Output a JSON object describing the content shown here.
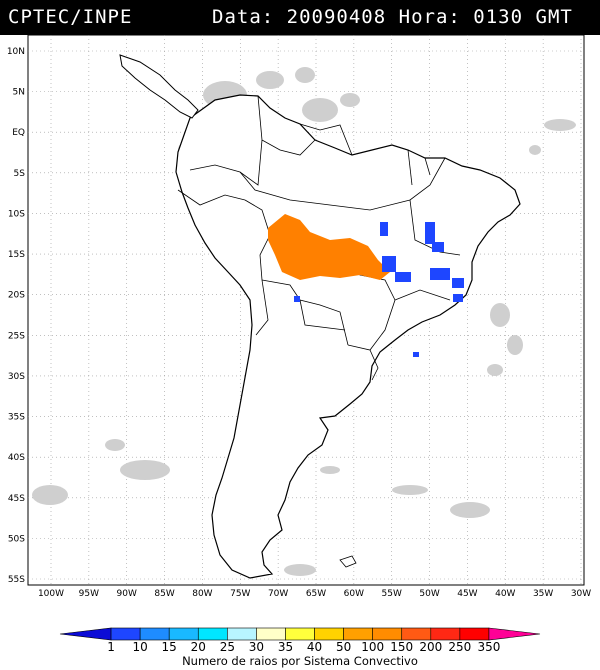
{
  "header": {
    "source": "CPTEC/INPE",
    "date_label": "Data:",
    "date_value": "20090408",
    "hour_label": "Hora:",
    "hour_value": "0130",
    "tz": "GMT"
  },
  "map": {
    "lat_labels": [
      "10N",
      "5N",
      "EQ",
      "5S",
      "10S",
      "15S",
      "20S",
      "25S",
      "30S",
      "35S",
      "40S",
      "45S",
      "50S",
      "55S"
    ],
    "lon_labels": [
      "100W",
      "95W",
      "90W",
      "85W",
      "80W",
      "75W",
      "70W",
      "65W",
      "60W",
      "55W",
      "50W",
      "45W",
      "40W",
      "35W",
      "30W"
    ],
    "lat_range": [
      10,
      -55
    ],
    "lon_range": [
      -100,
      -30
    ],
    "grid": true
  },
  "legend": {
    "title": "Numero de raios por Sistema Convectivo",
    "labels": [
      "1",
      "10",
      "15",
      "20",
      "25",
      "30",
      "35",
      "40",
      "50",
      "100",
      "150",
      "200",
      "250",
      "350"
    ],
    "colors": [
      "#0b0bd6",
      "#1e46ff",
      "#1e8cff",
      "#19b9ff",
      "#00e6ff",
      "#b8f5ff",
      "#ffffc8",
      "#ffff3c",
      "#ffd200",
      "#ffa000",
      "#ff8c00",
      "#ff5a14",
      "#ff2814",
      "#ff0000",
      "#ff0096"
    ]
  },
  "colors": {
    "cloud_gray": "#c8c8c8",
    "lightning_orange": "#ff8000",
    "lightning_blue": "#1e46ff"
  }
}
